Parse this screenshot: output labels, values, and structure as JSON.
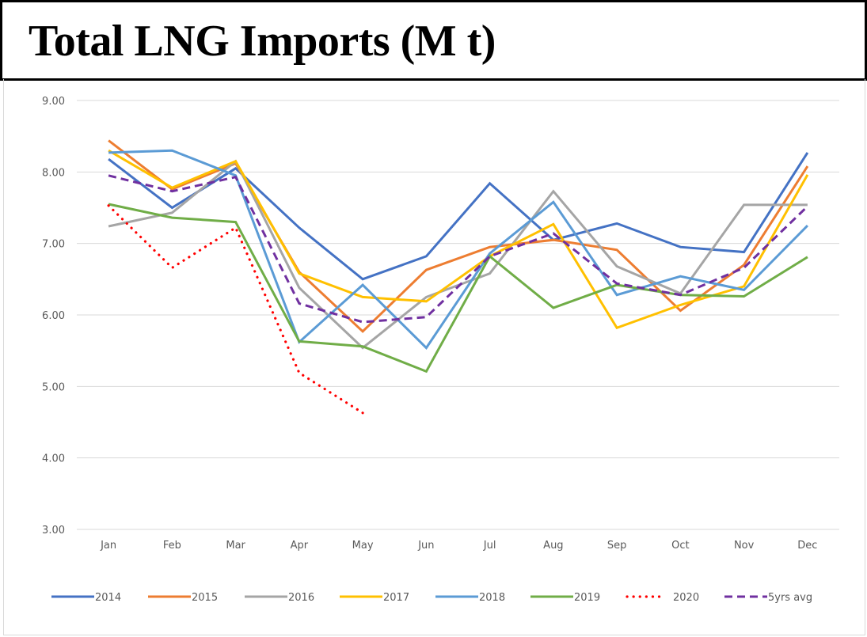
{
  "header": {
    "title": "Total LNG Imports (M t)"
  },
  "chart_data": {
    "type": "line",
    "title": "Total LNG Imports (M t)",
    "xlabel": "",
    "ylabel": "",
    "categories": [
      "Jan",
      "Feb",
      "Mar",
      "Apr",
      "May",
      "Jun",
      "Jul",
      "Aug",
      "Sep",
      "Oct",
      "Nov",
      "Dec"
    ],
    "ylim": [
      3.0,
      9.0
    ],
    "yticks": [
      "3.00",
      "4.00",
      "5.00",
      "6.00",
      "7.00",
      "8.00",
      "9.00"
    ],
    "grid": true,
    "legend_position": "bottom",
    "series": [
      {
        "name": "2014",
        "color": "#4472C4",
        "style": "solid",
        "values": [
          8.18,
          7.5,
          8.05,
          7.22,
          6.5,
          6.82,
          7.84,
          7.05,
          7.28,
          6.95,
          6.88,
          8.27
        ]
      },
      {
        "name": "2015",
        "color": "#ED7D31",
        "style": "solid",
        "values": [
          8.44,
          7.76,
          8.12,
          6.6,
          5.77,
          6.63,
          6.95,
          7.05,
          6.91,
          6.06,
          6.7,
          8.08
        ]
      },
      {
        "name": "2016",
        "color": "#A5A5A5",
        "style": "solid",
        "values": [
          7.24,
          7.43,
          8.15,
          6.38,
          5.54,
          6.25,
          6.58,
          7.73,
          6.68,
          6.3,
          7.54,
          7.54
        ]
      },
      {
        "name": "2017",
        "color": "#FFC000",
        "style": "solid",
        "values": [
          8.3,
          7.78,
          8.15,
          6.58,
          6.25,
          6.19,
          6.82,
          7.27,
          5.82,
          6.14,
          6.4,
          7.96
        ]
      },
      {
        "name": "2018",
        "color": "#5B9BD5",
        "style": "solid",
        "values": [
          8.27,
          8.3,
          7.95,
          5.62,
          6.42,
          5.54,
          6.86,
          7.58,
          6.28,
          6.54,
          6.35,
          7.25
        ]
      },
      {
        "name": "2019",
        "color": "#70AD47",
        "style": "solid",
        "values": [
          7.55,
          7.36,
          7.3,
          5.63,
          5.56,
          5.21,
          6.82,
          6.1,
          6.42,
          6.28,
          6.26,
          6.81
        ]
      },
      {
        "name": "2020",
        "color": "#FF0000",
        "style": "dotted",
        "values": [
          7.53,
          6.66,
          7.22,
          5.19,
          4.63,
          null,
          null,
          null,
          null,
          null,
          null,
          null
        ]
      },
      {
        "name": "5yrs avg",
        "color": "#7030A0",
        "style": "dashed",
        "values": [
          7.95,
          7.73,
          7.93,
          6.16,
          5.9,
          5.97,
          6.82,
          7.14,
          6.44,
          6.28,
          6.66,
          7.52
        ]
      }
    ]
  }
}
